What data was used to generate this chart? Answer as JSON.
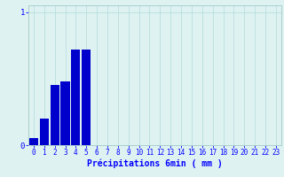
{
  "categories": [
    0,
    1,
    2,
    3,
    4,
    5,
    6,
    7,
    8,
    9,
    10,
    11,
    12,
    13,
    14,
    15,
    16,
    17,
    18,
    19,
    20,
    21,
    22,
    23
  ],
  "values": [
    0.05,
    0.2,
    0.45,
    0.48,
    0.72,
    0.72,
    0,
    0,
    0,
    0,
    0,
    0,
    0,
    0,
    0,
    0,
    0,
    0,
    0,
    0,
    0,
    0,
    0,
    0
  ],
  "bar_color": "#0000cc",
  "background_color": "#dff2f2",
  "grid_color": "#b8dede",
  "xlabel": "Précipitations 6min ( mm )",
  "ylabel": "",
  "yticks": [
    0,
    1
  ],
  "ylim": [
    0,
    1.05
  ],
  "xlim": [
    -0.5,
    23.5
  ],
  "xlabel_fontsize": 7,
  "tick_fontsize": 5.5,
  "bar_width": 0.85
}
